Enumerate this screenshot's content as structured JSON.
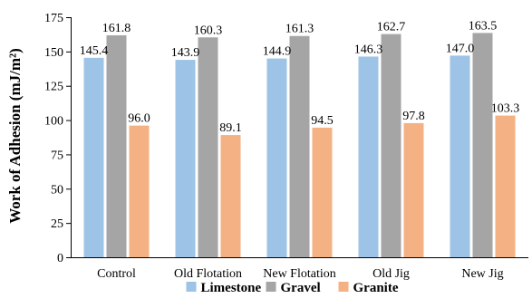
{
  "chart_data": {
    "type": "bar",
    "title": "",
    "xlabel": "",
    "ylabel": "Work of Adhesion (mJ/m²)",
    "ylim": [
      0,
      175
    ],
    "yticks": [
      0,
      25,
      50,
      75,
      100,
      125,
      150,
      175
    ],
    "grid": false,
    "legend_position": "bottom",
    "categories": [
      "Control",
      "Old Flotation",
      "New Flotation",
      "Old Jig",
      "New Jig"
    ],
    "series": [
      {
        "name": "Limestone",
        "color": "#9dc3e6",
        "values": [
          145.4,
          143.9,
          144.9,
          146.3,
          147.0
        ],
        "labels": [
          "145.4",
          "143.9",
          "144.9",
          "146.3",
          "147.0"
        ]
      },
      {
        "name": "Gravel",
        "color": "#a5a5a5",
        "values": [
          161.8,
          160.3,
          161.3,
          162.7,
          163.5
        ],
        "labels": [
          "161.8",
          "160.3",
          "161.3",
          "162.7",
          "163.5"
        ]
      },
      {
        "name": "Granite",
        "color": "#f4b183",
        "values": [
          96.0,
          89.1,
          94.5,
          97.8,
          103.3
        ],
        "labels": [
          "96.0",
          "89.1",
          "94.5",
          "97.8",
          "103.3"
        ]
      }
    ]
  }
}
